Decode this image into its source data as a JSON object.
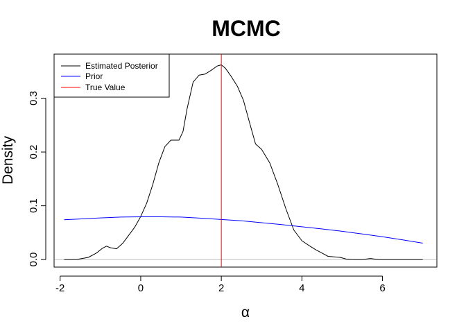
{
  "chart_data": {
    "type": "line",
    "title": "MCMC",
    "xlabel": "α",
    "ylabel": "Density",
    "xlim": [
      -2.15,
      7.35
    ],
    "ylim": [
      -0.014,
      0.382
    ],
    "x_ticks": [
      -2,
      0,
      2,
      4,
      6
    ],
    "x_tick_labels": [
      "-2",
      "0",
      "2",
      "4",
      "6"
    ],
    "y_ticks": [
      0.0,
      0.1,
      0.2,
      0.3
    ],
    "y_tick_labels": [
      "0.0",
      "0.1",
      "0.2",
      "0.3"
    ],
    "grid": false,
    "legend_position": "top-left",
    "series": [
      {
        "name": "Estimated Posterior",
        "color": "#000000",
        "x": [
          -1.9,
          -1.6,
          -1.3,
          -1.1,
          -0.95,
          -0.85,
          -0.75,
          -0.6,
          -0.45,
          -0.3,
          -0.15,
          0.0,
          0.15,
          0.3,
          0.45,
          0.6,
          0.75,
          0.95,
          1.05,
          1.15,
          1.3,
          1.45,
          1.6,
          1.75,
          1.9,
          2.0,
          2.1,
          2.25,
          2.4,
          2.55,
          2.7,
          2.85,
          3.0,
          3.2,
          3.4,
          3.6,
          3.8,
          4.0,
          4.2,
          4.35,
          4.5,
          4.65,
          4.8,
          4.95,
          5.1,
          5.3,
          5.5,
          5.7,
          5.9,
          6.2,
          6.6,
          7.0
        ],
        "y": [
          0.0,
          0.0,
          0.004,
          0.012,
          0.021,
          0.025,
          0.022,
          0.02,
          0.03,
          0.045,
          0.06,
          0.08,
          0.105,
          0.14,
          0.18,
          0.21,
          0.222,
          0.222,
          0.238,
          0.28,
          0.33,
          0.343,
          0.345,
          0.352,
          0.36,
          0.362,
          0.356,
          0.34,
          0.322,
          0.296,
          0.255,
          0.215,
          0.205,
          0.18,
          0.14,
          0.095,
          0.055,
          0.035,
          0.025,
          0.018,
          0.012,
          0.006,
          0.005,
          0.004,
          0.001,
          0.0,
          0.0,
          0.002,
          0.0,
          0.0,
          0.0,
          0.0
        ]
      },
      {
        "name": "Prior",
        "color": "#0000ff",
        "x": [
          -1.9,
          -1.5,
          -1.0,
          -0.5,
          0.0,
          0.5,
          1.0,
          1.5,
          2.0,
          2.5,
          3.0,
          3.5,
          4.0,
          4.5,
          5.0,
          5.5,
          6.0,
          6.5,
          7.0
        ],
        "y": [
          0.074,
          0.0755,
          0.0775,
          0.079,
          0.0795,
          0.0795,
          0.079,
          0.077,
          0.0745,
          0.072,
          0.0685,
          0.065,
          0.061,
          0.057,
          0.0525,
          0.0475,
          0.0425,
          0.0365,
          0.0305
        ]
      }
    ],
    "reference_lines": [
      {
        "name": "True Value",
        "orientation": "vertical",
        "x": 2,
        "color": "#ff0000"
      },
      {
        "orientation": "horizontal",
        "y": 0,
        "color": "#bebebe"
      }
    ]
  }
}
